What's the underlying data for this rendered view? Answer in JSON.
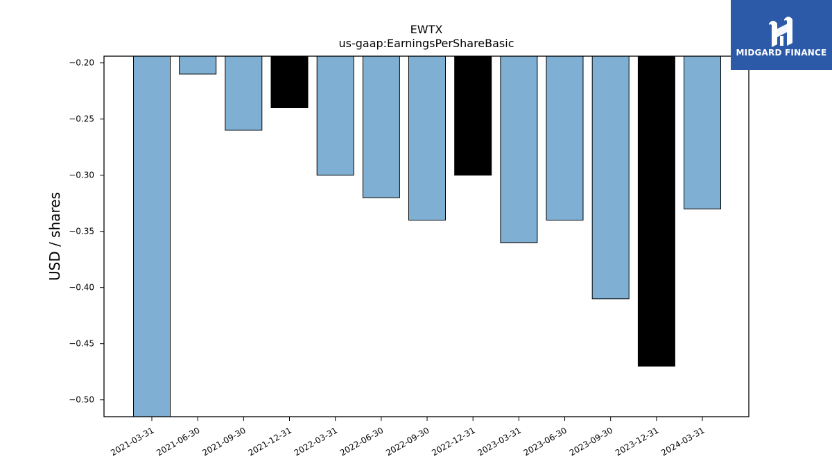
{
  "chart_data": {
    "type": "bar",
    "title": "EWTX",
    "subtitle": "us-gaap:EarningsPerShareBasic",
    "ylabel": "USD / shares",
    "xlabel": "",
    "categories": [
      "2021-03-31",
      "2021-06-30",
      "2021-09-30",
      "2021-12-31",
      "2022-03-31",
      "2022-06-30",
      "2022-09-30",
      "2022-12-31",
      "2023-03-31",
      "2023-06-30",
      "2023-09-30",
      "2023-12-31",
      "2024-03-31"
    ],
    "values": [
      -0.52,
      -0.21,
      -0.26,
      -0.24,
      -0.3,
      -0.32,
      -0.34,
      -0.3,
      -0.36,
      -0.34,
      -0.41,
      -0.47,
      -0.33
    ],
    "highlight": [
      false,
      false,
      false,
      true,
      false,
      false,
      false,
      true,
      false,
      false,
      false,
      true,
      false
    ],
    "ylim": [
      -0.515,
      -0.194
    ],
    "yticks": [
      -0.2,
      -0.25,
      -0.3,
      -0.35,
      -0.4,
      -0.45,
      -0.5
    ],
    "ytick_labels": [
      "−0.20",
      "−0.25",
      "−0.30",
      "−0.35",
      "−0.40",
      "−0.45",
      "−0.50"
    ],
    "grid": false,
    "colors": {
      "bar": "#7fb0d4",
      "highlight": "#000000",
      "edge": "#000000"
    }
  },
  "logo": {
    "text": "MIDGARD FINANCE",
    "background": "#2d5aa8"
  }
}
